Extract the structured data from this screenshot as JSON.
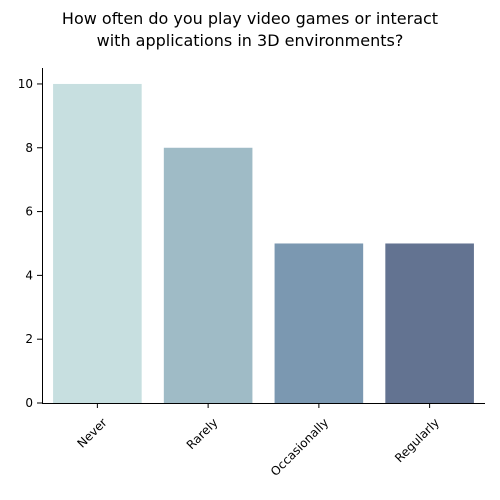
{
  "chart_data": {
    "type": "bar",
    "title_lines": [
      "How often do you play video games or interact",
      "with applications in 3D environments?"
    ],
    "categories": [
      "Never",
      "Rarely",
      "Occasionally",
      "Regularly"
    ],
    "values": [
      10,
      8,
      5,
      5
    ],
    "colors": [
      "#c7dfe0",
      "#9fbbc6",
      "#7b98b1",
      "#637391"
    ],
    "xlabel": "",
    "ylabel": "",
    "ylim": [
      0,
      10.5
    ],
    "yticks": [
      0,
      2,
      4,
      6,
      8,
      10
    ],
    "grid": false,
    "legend": "none",
    "x_tick_rotation_deg": -45
  }
}
